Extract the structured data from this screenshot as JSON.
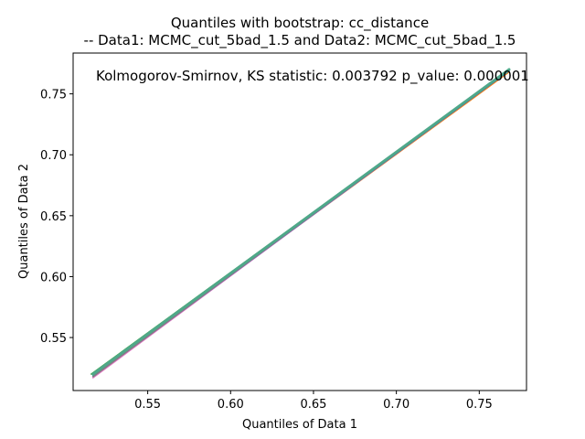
{
  "chart_data": {
    "type": "line",
    "title_line1": "Quantiles with bootstrap: cc_distance",
    "title_line2": "-- Data1: MCMC_cut_5bad_1.5 and Data2: MCMC_cut_5bad_1.5",
    "annotation": "Kolmogorov-Smirnov, KS statistic: 0.003792 p_value: 0.000001",
    "xlabel": "Quantiles of Data 1",
    "ylabel": "Quantiles of Data 2",
    "xlim": [
      0.505,
      0.7785
    ],
    "ylim": [
      0.5065,
      0.7835
    ],
    "xticks": [
      0.55,
      0.6,
      0.65,
      0.7,
      0.75
    ],
    "yticks": [
      0.55,
      0.6,
      0.65,
      0.7,
      0.75
    ],
    "xtick_labels": [
      "0.55",
      "0.60",
      "0.65",
      "0.70",
      "0.75"
    ],
    "ytick_labels": [
      "0.55",
      "0.60",
      "0.65",
      "0.70",
      "0.75"
    ],
    "grid": false,
    "series": [
      {
        "color": "#ff7f0e",
        "x": [
          0.517,
          0.768
        ],
        "y": [
          0.519,
          0.768
        ]
      },
      {
        "color": "#e377c2",
        "x": [
          0.517,
          0.768
        ],
        "y": [
          0.517,
          0.77
        ]
      },
      {
        "color": "#9467bd",
        "x": [
          0.517,
          0.768
        ],
        "y": [
          0.518,
          0.769
        ]
      },
      {
        "color": "#2ca02c",
        "x": [
          0.516,
          0.768
        ],
        "y": [
          0.52,
          0.77
        ]
      },
      {
        "color": "#1f77b4",
        "x": [
          0.517,
          0.768
        ],
        "y": [
          0.519,
          0.769
        ]
      },
      {
        "color": "#17becf",
        "x": [
          0.517,
          0.768
        ],
        "y": [
          0.519,
          0.77
        ]
      },
      {
        "color": "#7f7f7f",
        "x": [
          0.517,
          0.767
        ],
        "y": [
          0.518,
          0.769
        ]
      },
      {
        "color": "#4fa88a",
        "x": [
          0.517,
          0.768
        ],
        "y": [
          0.52,
          0.77
        ]
      }
    ]
  }
}
